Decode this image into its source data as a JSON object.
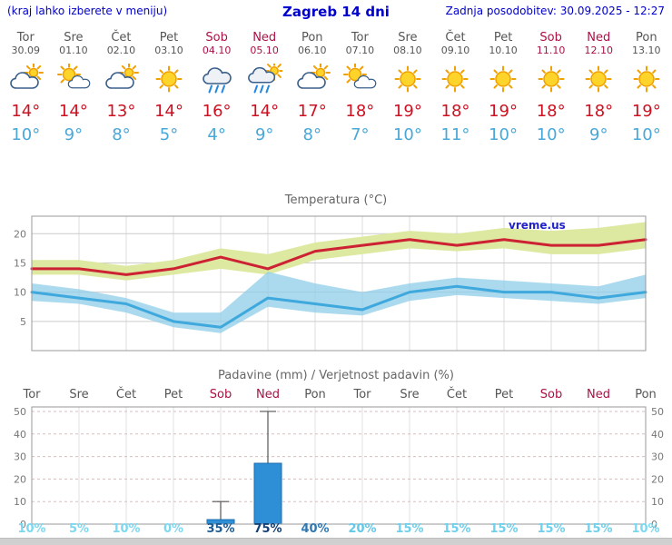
{
  "header": {
    "left_note": "(kraj lahko izberete v meniju)",
    "title": "Zagreb 14 dni",
    "last_update": "Zadnja posodobitev: 30.09.2025 - 12:27"
  },
  "colors": {
    "accent_blue": "#0000cc",
    "weekend_red": "#aa1144",
    "temp_high": "#cc1122",
    "temp_low": "#4aa8d8",
    "axis_gray": "#777777"
  },
  "days": [
    {
      "name": "Tor",
      "date": "30.09",
      "weekend": false,
      "icon": "cloud-sun",
      "high": "14°",
      "low": "10°"
    },
    {
      "name": "Sre",
      "date": "01.10",
      "weekend": false,
      "icon": "sun-small-cloud",
      "high": "14°",
      "low": "9°"
    },
    {
      "name": "Čet",
      "date": "02.10",
      "weekend": false,
      "icon": "cloud-sun",
      "high": "13°",
      "low": "8°"
    },
    {
      "name": "Pet",
      "date": "03.10",
      "weekend": false,
      "icon": "sunny",
      "high": "14°",
      "low": "5°"
    },
    {
      "name": "Sob",
      "date": "04.10",
      "weekend": true,
      "icon": "rain",
      "high": "16°",
      "low": "4°"
    },
    {
      "name": "Ned",
      "date": "05.10",
      "weekend": true,
      "icon": "rain-sun",
      "high": "14°",
      "low": "9°"
    },
    {
      "name": "Pon",
      "date": "06.10",
      "weekend": false,
      "icon": "cloud-sun",
      "high": "17°",
      "low": "8°"
    },
    {
      "name": "Tor",
      "date": "07.10",
      "weekend": false,
      "icon": "sun-small-cloud",
      "high": "18°",
      "low": "7°"
    },
    {
      "name": "Sre",
      "date": "08.10",
      "weekend": false,
      "icon": "sunny",
      "high": "19°",
      "low": "10°"
    },
    {
      "name": "Čet",
      "date": "09.10",
      "weekend": false,
      "icon": "sunny",
      "high": "18°",
      "low": "11°"
    },
    {
      "name": "Pet",
      "date": "10.10",
      "weekend": false,
      "icon": "sunny",
      "high": "19°",
      "low": "10°"
    },
    {
      "name": "Sob",
      "date": "11.10",
      "weekend": true,
      "icon": "sunny",
      "high": "18°",
      "low": "10°"
    },
    {
      "name": "Ned",
      "date": "12.10",
      "weekend": true,
      "icon": "sunny",
      "high": "18°",
      "low": "9°"
    },
    {
      "name": "Pon",
      "date": "13.10",
      "weekend": false,
      "icon": "sunny",
      "high": "19°",
      "low": "10°"
    }
  ],
  "chart_data": [
    {
      "type": "area",
      "title": "Temperatura (°C)",
      "x_labels": [
        "Tor",
        "Sre",
        "Čet",
        "Pet",
        "Sob",
        "Ned",
        "Pon",
        "Tor",
        "Sre",
        "Čet",
        "Pet",
        "Sob",
        "Ned",
        "Pon"
      ],
      "ylim": [
        0,
        23
      ],
      "yticks": [
        5,
        10,
        15,
        20
      ],
      "grid": true,
      "watermark": "vreme.us",
      "series": [
        {
          "name": "temp_max",
          "color": "#cc2233",
          "values": [
            14,
            14,
            13,
            14,
            16,
            14,
            17,
            18,
            19,
            18,
            19,
            18,
            18,
            19
          ]
        },
        {
          "name": "temp_min",
          "color": "#3fa8dc",
          "values": [
            10,
            9,
            8,
            5,
            4,
            9,
            8,
            7,
            10,
            11,
            10,
            10,
            9,
            10
          ]
        }
      ],
      "bands": [
        {
          "name": "max_range",
          "color": "#dde9a0",
          "opacity": 1,
          "upper": [
            15.5,
            15.5,
            14.5,
            15.5,
            17.5,
            16.5,
            18.5,
            19.5,
            20.5,
            20,
            21,
            20.5,
            21,
            22
          ],
          "lower": [
            13,
            13,
            12,
            13,
            14,
            13,
            15.5,
            16.5,
            17.5,
            17,
            17.5,
            16.5,
            16.5,
            17.5
          ]
        },
        {
          "name": "min_range",
          "color": "#8fcdea",
          "opacity": 0.75,
          "upper": [
            11.5,
            10.5,
            9,
            6.5,
            6.5,
            13.5,
            11.5,
            10,
            11.5,
            12.5,
            12,
            11.5,
            11,
            13
          ],
          "lower": [
            8.5,
            8,
            6.5,
            4,
            3,
            7.5,
            6.5,
            6,
            8.5,
            9.5,
            9,
            8.5,
            8,
            9
          ]
        }
      ]
    },
    {
      "type": "bar",
      "title": "Padavine (mm) / Verjetnost padavin (%)",
      "x_labels": [
        "Tor",
        "Sre",
        "Čet",
        "Pet",
        "Sob",
        "Ned",
        "Pon",
        "Tor",
        "Sre",
        "Čet",
        "Pet",
        "Sob",
        "Ned",
        "Pon"
      ],
      "weekend_indices": [
        4,
        5,
        11,
        12
      ],
      "ylim": [
        0,
        52
      ],
      "yticks": [
        0,
        10,
        20,
        30,
        40,
        50
      ],
      "bar_color": "#2e8fd6",
      "bar_border": "#1a6db0",
      "values": [
        0,
        0,
        0,
        0,
        2,
        27,
        0,
        0,
        0,
        0,
        0,
        0,
        0,
        0
      ],
      "whisker_max": [
        0,
        0,
        0,
        0,
        10,
        50,
        0,
        0,
        0,
        0,
        0,
        0,
        0,
        0
      ],
      "probabilities": [
        "10%",
        "5%",
        "10%",
        "0%",
        "35%",
        "75%",
        "40%",
        "20%",
        "15%",
        "15%",
        "15%",
        "15%",
        "15%",
        "10%"
      ],
      "prob_colors": [
        "#7bd8f0",
        "#7bd8f0",
        "#7bd8f0",
        "#7bd8f0",
        "#1d5c94",
        "#123f74",
        "#2e78b4",
        "#62c8e8",
        "#6fd0ec",
        "#6fd0ec",
        "#6fd0ec",
        "#6fd0ec",
        "#6fd0ec",
        "#7bd8f0"
      ]
    }
  ]
}
